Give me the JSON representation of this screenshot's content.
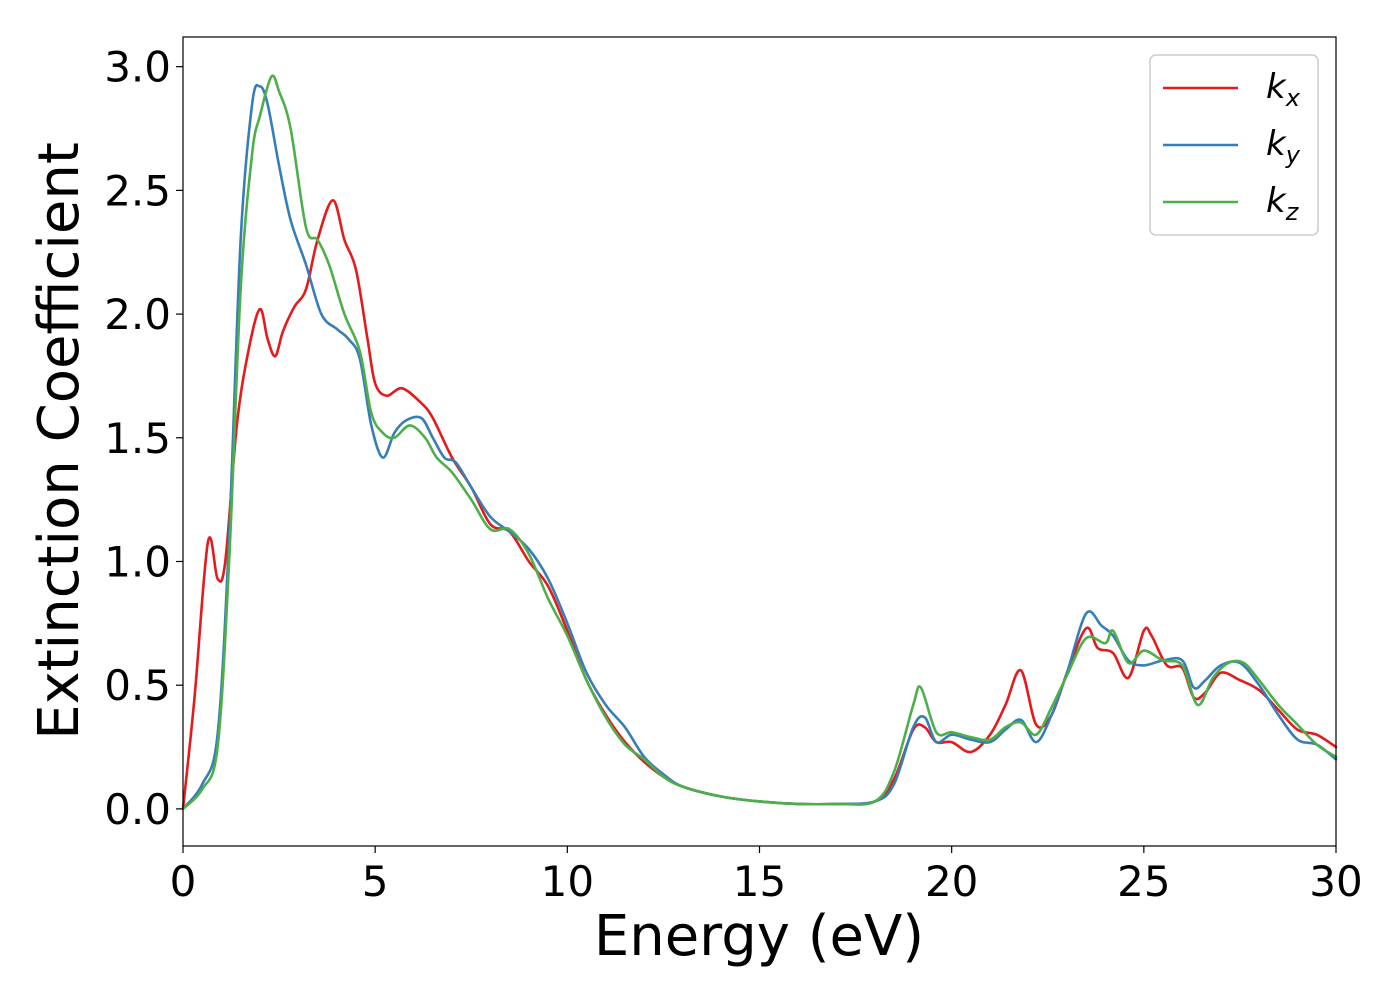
{
  "chart_data": {
    "type": "line",
    "title": "",
    "xlabel": "Energy (eV)",
    "ylabel": "Extinction Coefficient",
    "xlim": [
      0,
      30
    ],
    "ylim": [
      -0.15,
      3.12
    ],
    "xticks": [
      0,
      5,
      10,
      15,
      20,
      25,
      30
    ],
    "xtick_labels": [
      "0",
      "5",
      "10",
      "15",
      "20",
      "25",
      "30"
    ],
    "yticks": [
      0.0,
      0.5,
      1.0,
      1.5,
      2.0,
      2.5,
      3.0
    ],
    "ytick_labels": [
      "0.0",
      "0.5",
      "1.0",
      "1.5",
      "2.0",
      "2.5",
      "3.0"
    ],
    "grid": false,
    "legend_position": "top-right",
    "series": [
      {
        "name": "k",
        "subscript": "x",
        "color": "#e41a1c",
        "x": [
          0,
          0.3,
          0.65,
          0.9,
          1.1,
          1.4,
          1.7,
          2.0,
          2.2,
          2.4,
          2.6,
          2.9,
          3.2,
          3.5,
          3.9,
          4.2,
          4.5,
          4.8,
          5.0,
          5.3,
          5.7,
          6.2,
          6.5,
          7.0,
          7.5,
          8.0,
          8.5,
          9.0,
          9.5,
          10.0,
          10.5,
          11.0,
          11.5,
          12.0,
          12.5,
          13.0,
          14.0,
          15.0,
          16.0,
          17.0,
          18.0,
          18.5,
          19.0,
          19.3,
          19.6,
          20.0,
          20.5,
          21.0,
          21.4,
          21.8,
          22.2,
          22.6,
          23.0,
          23.5,
          23.8,
          24.2,
          24.6,
          25.0,
          25.2,
          25.6,
          26.0,
          26.3,
          26.6,
          27.0,
          27.5,
          28.0,
          28.5,
          29.0,
          29.5,
          30.0
        ],
        "y": [
          0.0,
          0.45,
          1.08,
          0.93,
          1.0,
          1.55,
          1.85,
          2.02,
          1.9,
          1.83,
          1.93,
          2.03,
          2.1,
          2.3,
          2.46,
          2.3,
          2.18,
          1.9,
          1.72,
          1.67,
          1.7,
          1.64,
          1.58,
          1.42,
          1.3,
          1.15,
          1.12,
          1.0,
          0.9,
          0.72,
          0.52,
          0.38,
          0.27,
          0.19,
          0.13,
          0.09,
          0.05,
          0.03,
          0.02,
          0.02,
          0.03,
          0.12,
          0.32,
          0.33,
          0.27,
          0.27,
          0.23,
          0.3,
          0.42,
          0.56,
          0.34,
          0.38,
          0.55,
          0.73,
          0.65,
          0.63,
          0.53,
          0.72,
          0.7,
          0.58,
          0.57,
          0.45,
          0.47,
          0.55,
          0.52,
          0.48,
          0.4,
          0.32,
          0.3,
          0.25
        ]
      },
      {
        "name": "k",
        "subscript": "y",
        "color": "#377eb8",
        "x": [
          0,
          0.5,
          0.9,
          1.2,
          1.5,
          1.8,
          2.0,
          2.2,
          2.5,
          2.8,
          3.2,
          3.6,
          4.0,
          4.3,
          4.6,
          4.9,
          5.2,
          5.5,
          5.8,
          6.2,
          6.5,
          6.8,
          7.1,
          7.5,
          8.0,
          8.5,
          9.0,
          9.5,
          10.0,
          10.5,
          11.0,
          11.5,
          12.0,
          12.5,
          13.0,
          14.0,
          15.0,
          16.0,
          17.0,
          18.0,
          18.5,
          19.0,
          19.3,
          19.6,
          20.0,
          20.5,
          21.0,
          21.4,
          21.8,
          22.2,
          22.6,
          23.0,
          23.5,
          23.9,
          24.2,
          24.6,
          25.0,
          25.5,
          26.0,
          26.3,
          26.6,
          27.0,
          27.5,
          28.0,
          28.5,
          29.0,
          29.5,
          30.0
        ],
        "y": [
          0.0,
          0.1,
          0.3,
          1.1,
          2.3,
          2.85,
          2.92,
          2.85,
          2.6,
          2.38,
          2.2,
          2.0,
          1.94,
          1.9,
          1.82,
          1.55,
          1.42,
          1.52,
          1.57,
          1.58,
          1.5,
          1.42,
          1.4,
          1.3,
          1.18,
          1.12,
          1.05,
          0.93,
          0.75,
          0.55,
          0.42,
          0.33,
          0.21,
          0.14,
          0.09,
          0.05,
          0.03,
          0.02,
          0.02,
          0.03,
          0.1,
          0.33,
          0.37,
          0.27,
          0.3,
          0.28,
          0.27,
          0.32,
          0.36,
          0.27,
          0.38,
          0.55,
          0.79,
          0.74,
          0.7,
          0.6,
          0.58,
          0.6,
          0.6,
          0.49,
          0.52,
          0.58,
          0.59,
          0.5,
          0.38,
          0.28,
          0.26,
          0.2
        ]
      },
      {
        "name": "k",
        "subscript": "z",
        "color": "#4daf4a",
        "x": [
          0,
          0.5,
          0.9,
          1.2,
          1.5,
          1.8,
          2.0,
          2.3,
          2.5,
          2.8,
          3.2,
          3.5,
          3.8,
          4.2,
          4.6,
          4.9,
          5.2,
          5.5,
          5.9,
          6.3,
          6.6,
          7.0,
          7.5,
          8.0,
          8.5,
          9.0,
          9.5,
          10.0,
          10.5,
          11.0,
          11.5,
          12.0,
          12.5,
          13.0,
          14.0,
          15.0,
          16.0,
          17.0,
          18.0,
          18.5,
          19.0,
          19.2,
          19.6,
          20.0,
          20.5,
          21.0,
          21.4,
          21.8,
          22.2,
          22.6,
          23.0,
          23.5,
          24.0,
          24.2,
          24.6,
          25.0,
          25.5,
          26.0,
          26.4,
          26.8,
          27.2,
          27.6,
          28.0,
          28.5,
          29.0,
          29.5,
          30.0
        ],
        "y": [
          0.0,
          0.08,
          0.25,
          1.0,
          2.1,
          2.65,
          2.8,
          2.96,
          2.9,
          2.75,
          2.35,
          2.3,
          2.2,
          2.0,
          1.85,
          1.6,
          1.52,
          1.5,
          1.55,
          1.5,
          1.42,
          1.36,
          1.25,
          1.13,
          1.13,
          1.03,
          0.85,
          0.7,
          0.52,
          0.37,
          0.26,
          0.2,
          0.13,
          0.09,
          0.05,
          0.03,
          0.02,
          0.02,
          0.03,
          0.15,
          0.42,
          0.49,
          0.31,
          0.31,
          0.29,
          0.28,
          0.33,
          0.35,
          0.3,
          0.41,
          0.54,
          0.69,
          0.67,
          0.72,
          0.59,
          0.64,
          0.6,
          0.58,
          0.42,
          0.53,
          0.59,
          0.59,
          0.52,
          0.42,
          0.34,
          0.26,
          0.21
        ]
      }
    ]
  }
}
